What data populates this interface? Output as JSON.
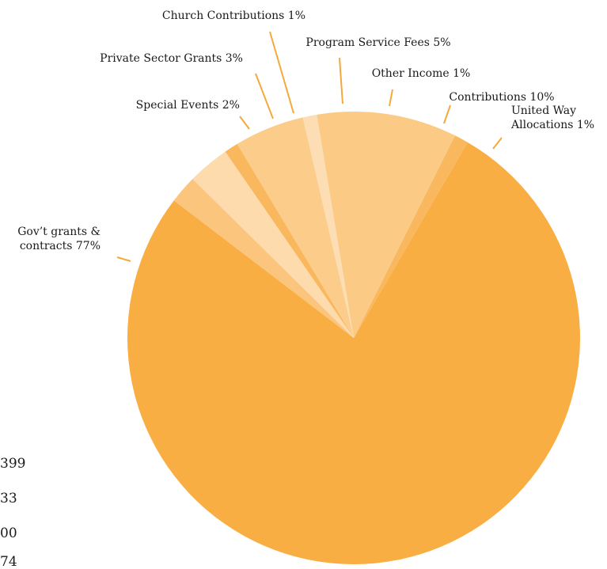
{
  "chart_data": {
    "type": "pie",
    "slices": [
      {
        "label": "Gov't grants & contracts 77%",
        "lines": [
          "Gov’t grants &",
          "contracts 77%"
        ],
        "value": 77,
        "color": "#F9AE43"
      },
      {
        "label": "Special Events 2%",
        "lines": [
          "Special Events 2%"
        ],
        "value": 2,
        "color": "#FCC57D"
      },
      {
        "label": "Private Sector Grants 3%",
        "lines": [
          "Private Sector Grants 3%"
        ],
        "value": 3,
        "color": "#FDDBAD"
      },
      {
        "label": "Church Contributions 1%",
        "lines": [
          "Church Contributions 1%"
        ],
        "value": 1,
        "color": "#FAB85E"
      },
      {
        "label": "Program Service Fees 5%",
        "lines": [
          "Program Service Fees 5%"
        ],
        "value": 5,
        "color": "#FCCD8A"
      },
      {
        "label": "Other Income 1%",
        "lines": [
          "Other Income 1%"
        ],
        "value": 1,
        "color": "#FDDEB4"
      },
      {
        "label": "Contributions 10%",
        "lines": [
          "Contributions 10%"
        ],
        "value": 10,
        "color": "#FBCA85"
      },
      {
        "label": "United Way Allocations 1%",
        "lines": [
          "United Way",
          "Allocations 1%"
        ],
        "value": 1,
        "color": "#FAB85E"
      }
    ],
    "partial_left_numbers": [
      "399",
      "33",
      "00",
      "74"
    ],
    "leader_color": "#F4A93C",
    "legend": "none"
  }
}
